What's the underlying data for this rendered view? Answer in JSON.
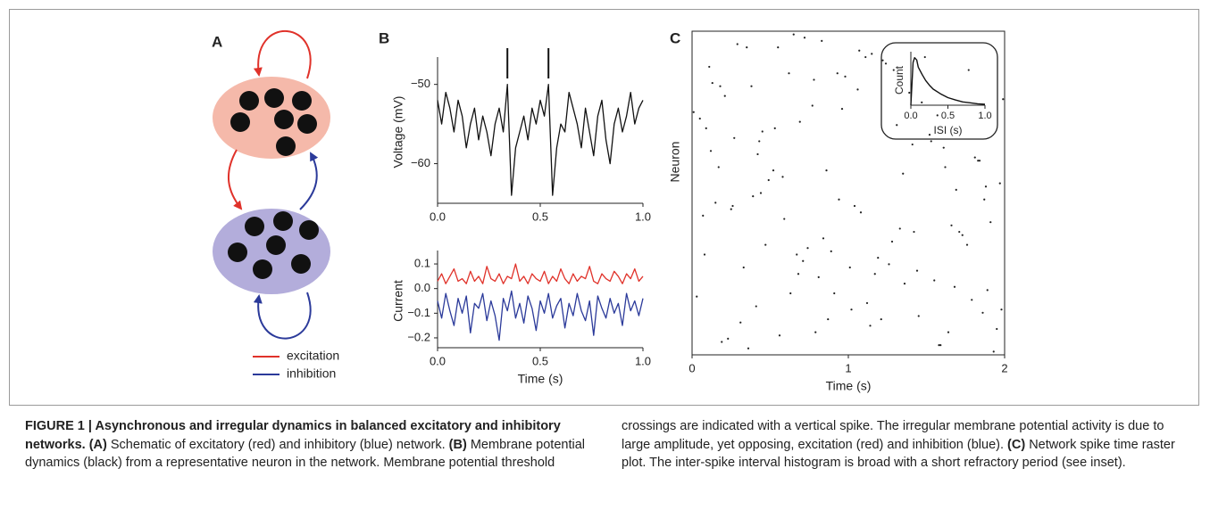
{
  "panel_labels": [
    "A",
    "B",
    "C"
  ],
  "diagram": {
    "legend": [
      {
        "label": "excitation",
        "color": "#e0322a"
      },
      {
        "label": "inhibition",
        "color": "#2b3a9a"
      }
    ]
  },
  "chart_data": [
    {
      "type": "line",
      "ylabel": "Voltage (mV)",
      "x": [
        0,
        0.02,
        0.04,
        0.06,
        0.08,
        0.1,
        0.12,
        0.14,
        0.16,
        0.18,
        0.2,
        0.22,
        0.24,
        0.26,
        0.28,
        0.3,
        0.32,
        0.34,
        0.36,
        0.38,
        0.4,
        0.42,
        0.44,
        0.46,
        0.48,
        0.5,
        0.52,
        0.54,
        0.56,
        0.58,
        0.6,
        0.62,
        0.64,
        0.66,
        0.68,
        0.7,
        0.72,
        0.74,
        0.76,
        0.78,
        0.8,
        0.82,
        0.84,
        0.86,
        0.88,
        0.9,
        0.92,
        0.94,
        0.96,
        0.98,
        1.0
      ],
      "series": [
        {
          "color": "#111111",
          "values": [
            -52,
            -55,
            -51,
            -53,
            -56,
            -52,
            -54,
            -58,
            -55,
            -53,
            -57,
            -54,
            -56,
            -59,
            -55,
            -53,
            -56,
            -50,
            -64,
            -58,
            -56,
            -54,
            -57,
            -53,
            -55,
            -52,
            -54,
            -50,
            -64,
            -58,
            -55,
            -56,
            -51,
            -53,
            -55,
            -58,
            -53,
            -56,
            -59,
            -54,
            -52,
            -57,
            -60,
            -55,
            -53,
            -56,
            -54,
            -51,
            -55,
            -53,
            -52
          ]
        }
      ],
      "threshold_crossings": [
        0.34,
        0.54
      ],
      "xlim": [
        0,
        1
      ],
      "xticks": [
        {
          "value": 0,
          "label": "0.0"
        },
        {
          "value": 0.5,
          "label": "0.5"
        },
        {
          "value": 1,
          "label": "1.0"
        }
      ],
      "ylim": [
        -65,
        -47
      ],
      "yticks": [
        {
          "value": -50,
          "label": "−50"
        },
        {
          "value": -60,
          "label": "−60"
        }
      ]
    },
    {
      "type": "line",
      "xlabel": "Time (s)",
      "ylabel": "Current",
      "x": [
        0,
        0.02,
        0.04,
        0.06,
        0.08,
        0.1,
        0.12,
        0.14,
        0.16,
        0.18,
        0.2,
        0.22,
        0.24,
        0.26,
        0.28,
        0.3,
        0.32,
        0.34,
        0.36,
        0.38,
        0.4,
        0.42,
        0.44,
        0.46,
        0.48,
        0.5,
        0.52,
        0.54,
        0.56,
        0.58,
        0.6,
        0.62,
        0.64,
        0.66,
        0.68,
        0.7,
        0.72,
        0.74,
        0.76,
        0.78,
        0.8,
        0.82,
        0.84,
        0.86,
        0.88,
        0.9,
        0.92,
        0.94,
        0.96,
        0.98,
        1.0
      ],
      "series": [
        {
          "color": "#e0322a",
          "values": [
            0.03,
            0.06,
            0.02,
            0.05,
            0.08,
            0.03,
            0.04,
            0.02,
            0.07,
            0.03,
            0.05,
            0.02,
            0.09,
            0.04,
            0.03,
            0.06,
            0.02,
            0.05,
            0.04,
            0.1,
            0.03,
            0.05,
            0.02,
            0.06,
            0.04,
            0.03,
            0.07,
            0.02,
            0.05,
            0.03,
            0.08,
            0.04,
            0.02,
            0.06,
            0.03,
            0.05,
            0.04,
            0.09,
            0.03,
            0.02,
            0.06,
            0.04,
            0.03,
            0.07,
            0.05,
            0.02,
            0.06,
            0.04,
            0.08,
            0.03,
            0.05
          ]
        },
        {
          "color": "#2b3a9a",
          "values": [
            -0.05,
            -0.12,
            -0.02,
            -0.09,
            -0.15,
            -0.04,
            -0.1,
            -0.03,
            -0.18,
            -0.06,
            -0.08,
            -0.02,
            -0.13,
            -0.05,
            -0.11,
            -0.21,
            -0.04,
            -0.09,
            -0.01,
            -0.12,
            -0.06,
            -0.14,
            -0.03,
            -0.08,
            -0.17,
            -0.05,
            -0.1,
            -0.02,
            -0.12,
            -0.07,
            -0.04,
            -0.16,
            -0.06,
            -0.11,
            -0.02,
            -0.09,
            -0.13,
            -0.05,
            -0.19,
            -0.03,
            -0.08,
            -0.12,
            -0.04,
            -0.1,
            -0.06,
            -0.15,
            -0.02,
            -0.09,
            -0.05,
            -0.11,
            -0.04
          ]
        }
      ],
      "xlim": [
        0,
        1
      ],
      "xticks": [
        {
          "value": 0,
          "label": "0.0"
        },
        {
          "value": 0.5,
          "label": "0.5"
        },
        {
          "value": 1,
          "label": "1.0"
        }
      ],
      "ylim": [
        -0.24,
        0.14
      ],
      "yticks": [
        0.1,
        {
          "value": 0,
          "label": "0.0"
        },
        {
          "value": -0.1,
          "label": "−0.1"
        },
        {
          "value": -0.2,
          "label": "−0.2"
        }
      ]
    },
    {
      "type": "scatter",
      "xlabel": "Time (s)",
      "ylabel": "Neuron",
      "color": "#222222",
      "x": [
        0.12,
        1.45,
        0.78,
        1.91,
        0.33,
        1.07,
        0.56,
        1.62,
        0.05,
        1.28,
        0.91,
        1.77,
        0.44,
        0.19,
        1.53,
        0.67,
        1.99,
        0.25,
        1.14,
        0.83,
        1.36,
        0.09,
        1.71,
        0.58,
        1.02,
        0.38,
        1.84,
        0.71,
        1.22,
        0.15,
        1.59,
        0.96,
        0.47,
        1.41,
        0.03,
        1.88,
        0.62,
        1.17,
        0.29,
        1.66,
        0.87,
        1.31,
        0.52,
        1.95,
        0.21,
        1.08,
        0.74,
        1.49,
        0.41,
        1.81,
        0.11,
        1.26,
        0.94,
        1.57,
        0.36,
        1.73,
        0.65,
        1.12,
        0.27,
        1.97,
        0.81,
        1.39,
        0.07,
        1.64,
        0.55,
        1.19,
        0.42,
        1.86,
        0.98,
        1.33,
        0.17,
        1.68,
        0.77,
        1.04,
        0.31,
        1.52,
        0.89,
        1.24,
        0.49,
        1.93,
        0.13,
        1.44,
        0.69,
        1.79,
        0.39,
        1.15,
        0.84,
        1.61,
        0.23,
        1.06,
        0.59,
        1.89,
        0.01,
        1.35,
        0.72,
        1.55,
        0.45,
        1.76,
        0.93,
        1.21,
        0.26,
        1.47,
        0.63,
        1.83,
        0.08,
        1.29,
        0.79,
        1.69,
        0.35,
        1.01,
        0.53,
        1.98,
        0.18,
        1.42,
        0.86,
        1.58,
        0.43,
        1.11,
        0.68,
        1.87
      ],
      "values": [
        63,
        12,
        85,
        41,
        27,
        94,
        6,
        58,
        73,
        35,
        19,
        88,
        50,
        4,
        66,
        31,
        79,
        45,
        9,
        97,
        22,
        70,
        38,
        55,
        14,
        83,
        60,
        29,
        91,
        47,
        3,
        76,
        34,
        65,
        18,
        52,
        87,
        25,
        96,
        40,
        11,
        71,
        57,
        8,
        80,
        44,
        33,
        92,
        15,
        61,
        89,
        28,
        48,
        74,
        2,
        37,
        99,
        16,
        67,
        53,
        24,
        81,
        43,
        7,
        95,
        30,
        62,
        13,
        86,
        39,
        58,
        21,
        77,
        46,
        10,
        68,
        32,
        90,
        54,
        1,
        84,
        26,
        72,
        17,
        49,
        93,
        36,
        64,
        5,
        82,
        42,
        20,
        75,
        56,
        98,
        23,
        69,
        34,
        87,
        11,
        46,
        78,
        19,
        60,
        31,
        88,
        7,
        51,
        95,
        27,
        70,
        14,
        83,
        38,
        57,
        3,
        66,
        92,
        25,
        48
      ],
      "xlim": [
        0,
        2
      ],
      "xticks": [
        0,
        1,
        2
      ],
      "ylim": [
        0,
        100
      ]
    },
    {
      "type": "line",
      "xlabel": "ISI (s)",
      "ylabel": "Count",
      "x": [
        0,
        0.03,
        0.05,
        0.08,
        0.1,
        0.15,
        0.2,
        0.25,
        0.3,
        0.4,
        0.5,
        0.6,
        0.7,
        0.8,
        0.9,
        1.0
      ],
      "series": [
        {
          "color": "#111111",
          "values": [
            0,
            90,
            100,
            95,
            80,
            65,
            52,
            42,
            34,
            24,
            16,
            11,
            7,
            5,
            3,
            2
          ]
        }
      ],
      "xlim": [
        0,
        1
      ],
      "xticks": [
        {
          "value": 0,
          "label": "0.0"
        },
        {
          "value": 0.5,
          "label": "0.5"
        },
        {
          "value": 1,
          "label": "1.0"
        }
      ],
      "ylim": [
        0,
        105
      ]
    }
  ],
  "caption": {
    "title": "FIGURE 1 | Asynchronous and irregular dynamics in balanced excitatory and inhibitory networks.",
    "parts": [
      {
        "label": "(A)",
        "text": "Schematic of excitatory (red) and inhibitory (blue) network."
      },
      {
        "label": "(B)",
        "text": "Membrane potential dynamics (black) from a representative neuron in the network. Membrane potential threshold crossings are indicated with a vertical spike. The irregular membrane potential activity is due to large amplitude, yet opposing, excitation (red) and inhibition (blue)."
      },
      {
        "label": "(C)",
        "text": "Network spike time raster plot. The inter-spike interval histogram is broad with a short refractory period (see inset)."
      }
    ]
  }
}
